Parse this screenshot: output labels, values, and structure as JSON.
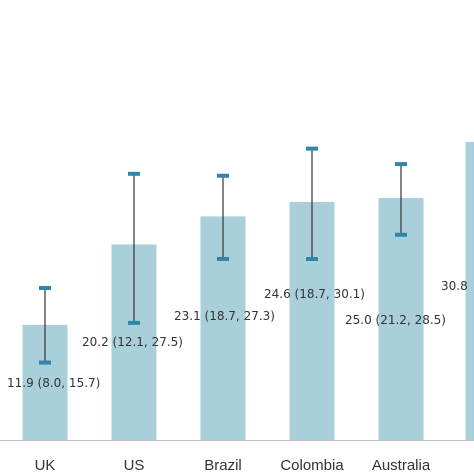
{
  "chart_data": {
    "type": "bar",
    "title": "",
    "xlabel": "",
    "ylabel": "",
    "ylim": [
      0,
      38
    ],
    "grid": false,
    "legend": "none",
    "categories": [
      "UK",
      "US",
      "Brazil",
      "Colombia",
      "Australia",
      ""
    ],
    "values": [
      11.9,
      20.2,
      23.1,
      24.6,
      25.0,
      30.8
    ],
    "ci_lower": [
      8.0,
      12.1,
      18.7,
      18.7,
      21.2,
      null
    ],
    "ci_upper": [
      15.7,
      27.5,
      27.3,
      30.1,
      28.5,
      null
    ],
    "data_labels": [
      "11.9 (8.0, 15.7)",
      "20.2 (12.1, 27.5)",
      "23.1 (18.7, 27.3)",
      "24.6 (18.7, 30.1)",
      "25.0 (21.2, 28.5)",
      "30.8"
    ],
    "colors": {
      "bar": "#a9cfdb",
      "error_line": "#333333",
      "error_cap": "#2f86a6",
      "axis": "#bfbfbf"
    }
  }
}
